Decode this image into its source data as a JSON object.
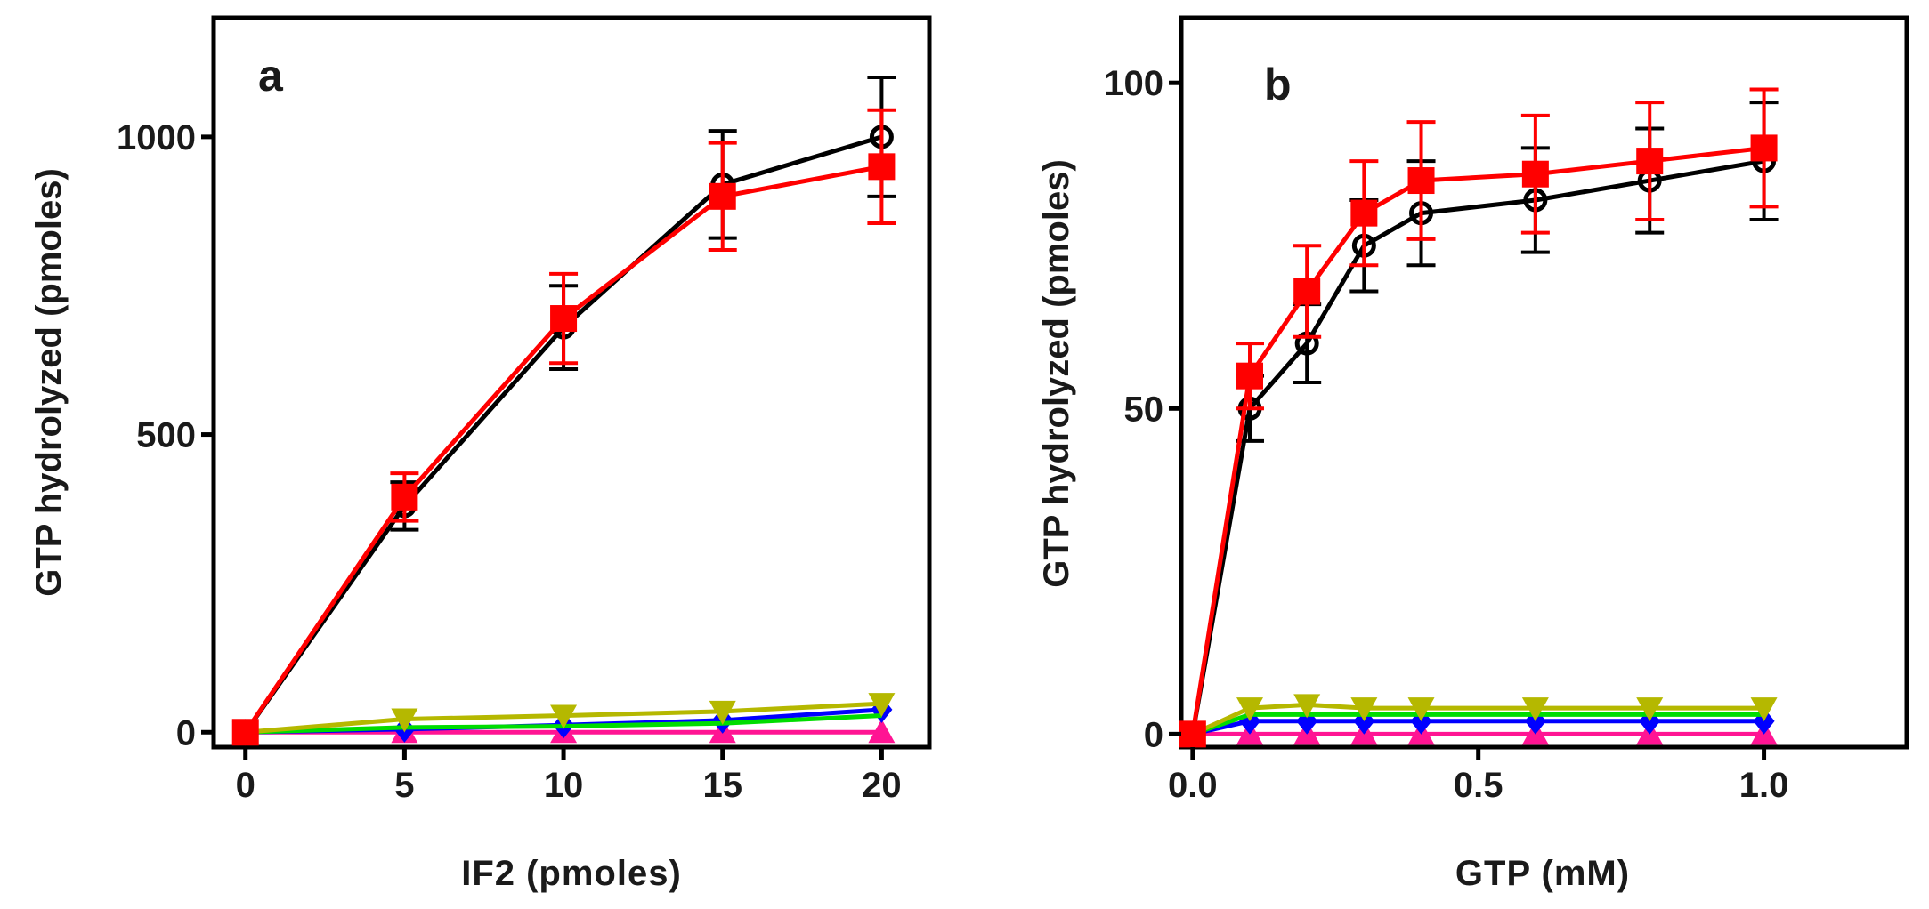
{
  "chart_data": [
    {
      "type": "line",
      "panel_label": "a",
      "xlabel": "IF2 (pmoles)",
      "ylabel": "GTP hydrolyzed (pmoles)",
      "xlim": [
        -1,
        21.5
      ],
      "ylim": [
        -25,
        1200
      ],
      "xticks": [
        0,
        5,
        10,
        15,
        20
      ],
      "xtick_labels": [
        "0",
        "5",
        "10",
        "15",
        "20"
      ],
      "yticks": [
        0,
        500,
        1000
      ],
      "ytick_labels": [
        "0",
        "500",
        "1000"
      ],
      "series": [
        {
          "name": "open-circle",
          "color": "#000000",
          "marker": "circle-open",
          "x": [
            0,
            5,
            10,
            15,
            20
          ],
          "y": [
            0,
            380,
            680,
            920,
            1000
          ],
          "err": [
            0,
            40,
            70,
            90,
            100
          ]
        },
        {
          "name": "red-square",
          "color": "#ff0000",
          "marker": "square",
          "x": [
            0,
            5,
            10,
            15,
            20
          ],
          "y": [
            0,
            395,
            695,
            900,
            950
          ],
          "err": [
            0,
            40,
            75,
            90,
            95
          ]
        },
        {
          "name": "magenta-triangle",
          "color": "#ff1493",
          "marker": "triangle-up",
          "x": [
            0,
            5,
            10,
            15,
            20
          ],
          "y": [
            0,
            0,
            0,
            0,
            0
          ],
          "err": [
            0,
            0,
            0,
            0,
            0
          ]
        },
        {
          "name": "blue-diamond",
          "color": "#0000ff",
          "marker": "diamond",
          "x": [
            0,
            5,
            10,
            15,
            20
          ],
          "y": [
            0,
            5,
            12,
            20,
            38
          ],
          "err": [
            0,
            0,
            0,
            0,
            0
          ]
        },
        {
          "name": "green-line",
          "color": "#00dd00",
          "marker": "none",
          "x": [
            0,
            5,
            10,
            15,
            20
          ],
          "y": [
            0,
            8,
            10,
            15,
            28
          ],
          "err": [
            0,
            0,
            0,
            0,
            0
          ]
        },
        {
          "name": "olive-triangle",
          "color": "#b5b800",
          "marker": "triangle-down",
          "x": [
            0,
            5,
            10,
            15,
            20
          ],
          "y": [
            0,
            22,
            28,
            35,
            48
          ],
          "err": [
            0,
            0,
            0,
            0,
            0
          ]
        }
      ]
    },
    {
      "type": "line",
      "panel_label": "b",
      "xlabel": "GTP (mM)",
      "ylabel": "GTP hydrolyzed (pmoles)",
      "xlim": [
        -0.02,
        1.25
      ],
      "ylim": [
        -2,
        110
      ],
      "xticks": [
        0,
        0.5,
        1.0
      ],
      "xtick_labels": [
        "0.0",
        "0.5",
        "1.0"
      ],
      "yticks": [
        0,
        50,
        100
      ],
      "ytick_labels": [
        "0",
        "50",
        "100"
      ],
      "series": [
        {
          "name": "open-circle",
          "color": "#000000",
          "marker": "circle-open",
          "x": [
            0,
            0.1,
            0.2,
            0.3,
            0.4,
            0.6,
            0.8,
            1.0
          ],
          "y": [
            0,
            50,
            60,
            75,
            80,
            82,
            85,
            88
          ],
          "err": [
            0,
            5,
            6,
            7,
            8,
            8,
            8,
            9
          ]
        },
        {
          "name": "red-square",
          "color": "#ff0000",
          "marker": "square",
          "x": [
            0,
            0.1,
            0.2,
            0.3,
            0.4,
            0.6,
            0.8,
            1.0
          ],
          "y": [
            0,
            55,
            68,
            80,
            85,
            86,
            88,
            90
          ],
          "err": [
            0,
            5,
            7,
            8,
            9,
            9,
            9,
            9
          ]
        },
        {
          "name": "magenta-triangle",
          "color": "#ff1493",
          "marker": "triangle-up",
          "x": [
            0,
            0.1,
            0.2,
            0.3,
            0.4,
            0.6,
            0.8,
            1.0
          ],
          "y": [
            0,
            0,
            0,
            0,
            0,
            0,
            0,
            0
          ],
          "err": [
            0,
            0,
            0,
            0,
            0,
            0,
            0,
            0
          ]
        },
        {
          "name": "blue-diamond",
          "color": "#0000ff",
          "marker": "diamond",
          "x": [
            0,
            0.1,
            0.2,
            0.3,
            0.4,
            0.6,
            0.8,
            1.0
          ],
          "y": [
            0,
            2,
            2,
            2,
            2,
            2,
            2,
            2
          ],
          "err": [
            0,
            0,
            0,
            0,
            0,
            0,
            0,
            0
          ]
        },
        {
          "name": "green-line",
          "color": "#00dd00",
          "marker": "none",
          "x": [
            0,
            0.1,
            0.2,
            0.3,
            0.4,
            0.6,
            0.8,
            1.0
          ],
          "y": [
            0,
            3,
            3,
            3,
            3,
            3,
            3,
            3
          ],
          "err": [
            0,
            0,
            0,
            0,
            0,
            0,
            0,
            0
          ]
        },
        {
          "name": "olive-triangle",
          "color": "#b5b800",
          "marker": "triangle-down",
          "x": [
            0,
            0.1,
            0.2,
            0.3,
            0.4,
            0.6,
            0.8,
            1.0
          ],
          "y": [
            0,
            4,
            4.5,
            4,
            4,
            4,
            4,
            4
          ],
          "err": [
            0,
            0,
            0,
            0,
            0,
            0,
            0,
            0
          ]
        }
      ]
    }
  ]
}
